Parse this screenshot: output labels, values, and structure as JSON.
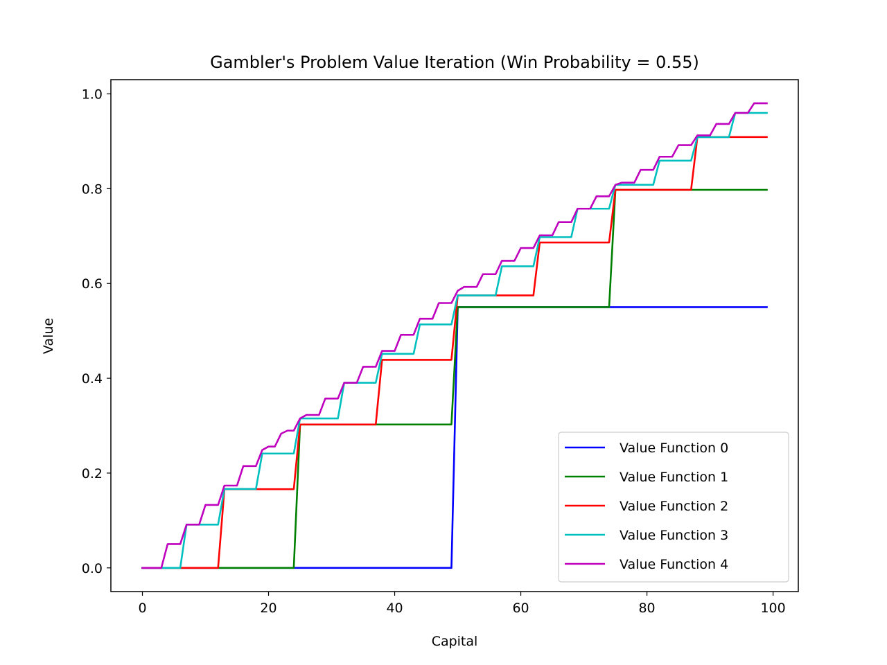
{
  "chart_data": {
    "type": "line",
    "title": "Gambler's Problem Value Iteration (Win Probability = 0.55)",
    "xlabel": "Capital",
    "ylabel": "Value",
    "xlim": [
      -5,
      104
    ],
    "ylim": [
      -0.05,
      1.03
    ],
    "xticks": [
      0,
      20,
      40,
      60,
      80,
      100
    ],
    "yticks": [
      0.0,
      0.2,
      0.4,
      0.6,
      0.8,
      1.0
    ],
    "xtick_labels": [
      "0",
      "20",
      "40",
      "60",
      "80",
      "100"
    ],
    "ytick_labels": [
      "0.0",
      "0.2",
      "0.4",
      "0.6",
      "0.8",
      "1.0"
    ],
    "grid": false,
    "legend_position": "lower-right",
    "series": [
      {
        "name": "Value Function 0",
        "color": "#0000ff",
        "x": [
          0,
          49,
          50,
          99
        ],
        "y": [
          0.0,
          0.0,
          0.55,
          0.55
        ]
      },
      {
        "name": "Value Function 1",
        "color": "#008000",
        "x": [
          0,
          24,
          25,
          49,
          50,
          74,
          75,
          99
        ],
        "y": [
          0.0,
          0.0,
          0.3025,
          0.3025,
          0.55,
          0.55,
          0.7975,
          0.7975
        ]
      },
      {
        "name": "Value Function 2",
        "color": "#ff0000",
        "x": [
          0,
          12,
          13,
          24,
          25,
          37,
          38,
          49,
          50,
          62,
          63,
          74,
          75,
          87,
          88,
          99
        ],
        "y": [
          0.0,
          0.0,
          0.166,
          0.166,
          0.3025,
          0.3025,
          0.439,
          0.439,
          0.5748,
          0.5748,
          0.6864,
          0.6864,
          0.7975,
          0.7975,
          0.9089,
          0.9089
        ]
      },
      {
        "name": "Value Function 3",
        "color": "#00bfbf",
        "x": [
          0,
          6,
          7,
          12,
          13,
          18,
          19,
          24,
          25,
          31,
          32,
          37,
          38,
          43,
          44,
          49,
          50,
          56,
          57,
          62,
          63,
          68,
          69,
          74,
          75,
          81,
          82,
          87,
          88,
          93,
          94,
          99
        ],
        "y": [
          0.0,
          0.0,
          0.0913,
          0.0913,
          0.1664,
          0.1664,
          0.2412,
          0.2412,
          0.3153,
          0.3153,
          0.3906,
          0.3906,
          0.4516,
          0.4516,
          0.5136,
          0.5136,
          0.5748,
          0.5748,
          0.6362,
          0.6362,
          0.6977,
          0.6977,
          0.7578,
          0.7578,
          0.8081,
          0.8081,
          0.8591,
          0.8591,
          0.9088,
          0.9088,
          0.9598,
          0.9598
        ]
      },
      {
        "name": "Value Function 4",
        "color": "#bf00bf",
        "x": [
          0,
          3,
          4,
          6,
          7,
          9,
          10,
          12,
          13,
          15,
          16,
          18,
          19,
          20,
          21,
          22,
          23,
          24,
          25,
          26,
          28,
          29,
          31,
          32,
          34,
          35,
          37,
          38,
          40,
          41,
          43,
          44,
          46,
          47,
          49,
          50,
          51,
          53,
          54,
          56,
          57,
          59,
          60,
          62,
          63,
          65,
          66,
          68,
          69,
          71,
          72,
          74,
          75,
          76,
          78,
          79,
          81,
          82,
          84,
          85,
          87,
          88,
          90,
          91,
          93,
          94,
          96,
          97,
          99
        ],
        "y": [
          0.0,
          0.0,
          0.0502,
          0.0502,
          0.0913,
          0.0913,
          0.1328,
          0.1328,
          0.1736,
          0.1736,
          0.2148,
          0.2148,
          0.2487,
          0.2559,
          0.2559,
          0.2832,
          0.2896,
          0.2896,
          0.3153,
          0.3226,
          0.3226,
          0.3573,
          0.3573,
          0.3906,
          0.3906,
          0.4243,
          0.4243,
          0.4577,
          0.4577,
          0.4918,
          0.4918,
          0.5256,
          0.5256,
          0.5587,
          0.5587,
          0.5847,
          0.5927,
          0.5927,
          0.6197,
          0.6197,
          0.6479,
          0.6479,
          0.6748,
          0.6748,
          0.7014,
          0.7014,
          0.7294,
          0.7294,
          0.7578,
          0.7578,
          0.7839,
          0.7839,
          0.8081,
          0.8127,
          0.8127,
          0.8398,
          0.8398,
          0.8674,
          0.8674,
          0.8918,
          0.8918,
          0.9124,
          0.9124,
          0.9365,
          0.9365,
          0.9598,
          0.9598,
          0.9802,
          0.9802
        ]
      }
    ]
  }
}
